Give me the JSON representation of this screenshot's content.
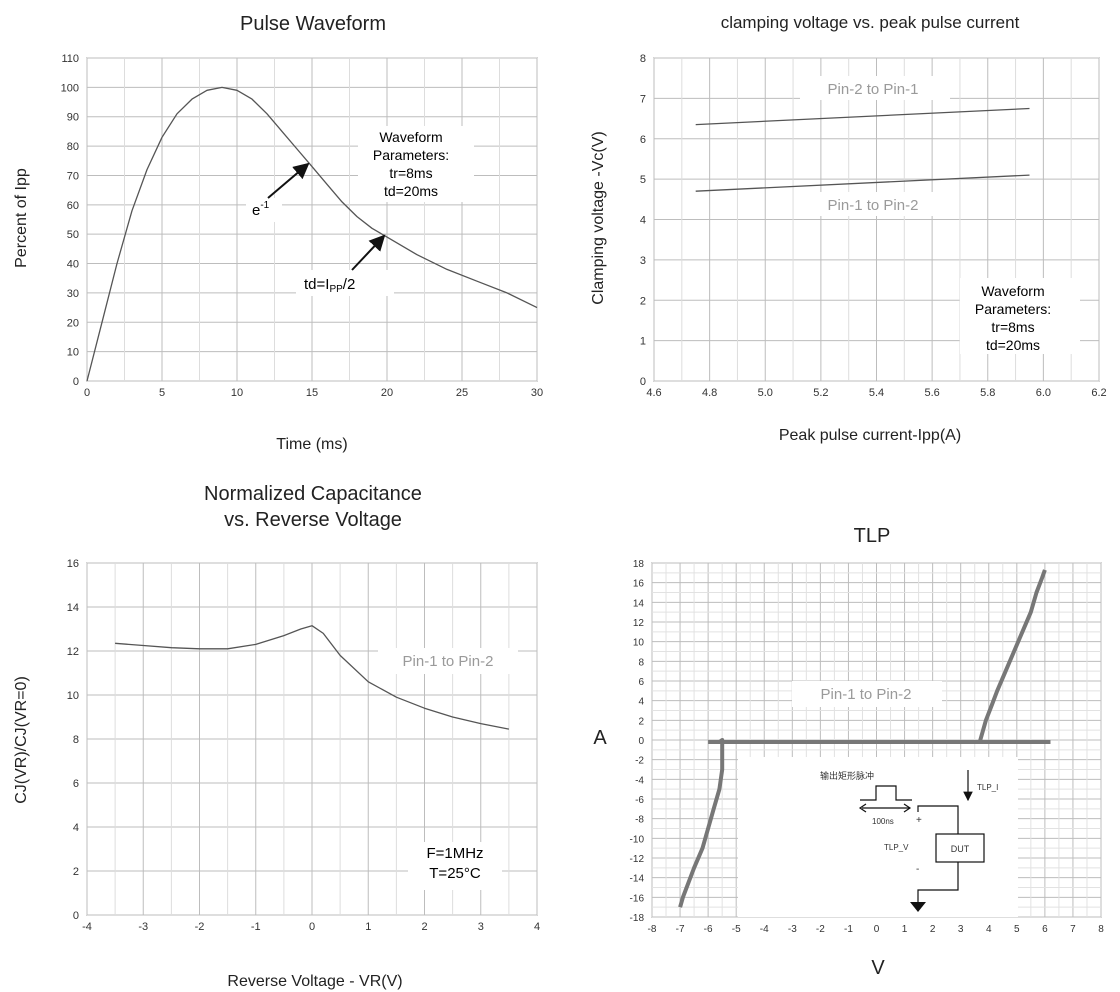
{
  "chart_data": [
    {
      "type": "line",
      "title": "Pulse Waveform",
      "xlabel": "Time (ms)",
      "ylabel": "Percent of  Ipp",
      "xlim": [
        0,
        30
      ],
      "ylim": [
        0,
        110
      ],
      "xticks": [
        0,
        5,
        10,
        15,
        20,
        25,
        30
      ],
      "yticks": [
        0,
        10,
        20,
        30,
        40,
        50,
        60,
        70,
        80,
        90,
        100,
        110
      ],
      "grid": true,
      "series": [
        {
          "x": [
            0,
            1,
            2,
            3,
            4,
            5,
            6,
            7,
            8,
            9,
            10,
            11,
            12,
            13,
            14,
            15,
            16,
            17,
            18,
            19,
            20,
            22,
            24,
            26,
            28,
            30
          ],
          "y": [
            0,
            20,
            40,
            58,
            72,
            83,
            91,
            96,
            99,
            100,
            99,
            96,
            91,
            85,
            79,
            73,
            67,
            61,
            56,
            52,
            49,
            43,
            38,
            34,
            30,
            25
          ]
        }
      ],
      "annotations": {
        "params": [
          "Waveform",
          "Parameters:",
          "tr=8ms",
          "td=20ms"
        ],
        "e_label": "e",
        "e_sup": "-1",
        "td_label": "td=I",
        "td_sub": "PP",
        "td_tail": "/2"
      }
    },
    {
      "type": "line",
      "title": "clamping voltage vs. peak pulse current",
      "xlabel": "Peak pulse current-Ipp(A)",
      "ylabel": "Clamping voltage -Vc(V)",
      "xlim": [
        4.6,
        6.2
      ],
      "ylim": [
        0,
        8
      ],
      "xticks": [
        "4.6",
        "4.8",
        "5.0",
        "5.2",
        "5.4",
        "5.6",
        "5.8",
        "6.0",
        "6.2"
      ],
      "yticks": [
        0,
        1,
        2,
        3,
        4,
        5,
        6,
        7,
        8
      ],
      "grid": true,
      "series": [
        {
          "name": "Pin-2 to Pin-1",
          "x": [
            4.75,
            5.95
          ],
          "y": [
            6.35,
            6.75
          ]
        },
        {
          "name": "Pin-1 to Pin-2",
          "x": [
            4.75,
            5.95
          ],
          "y": [
            4.7,
            5.1
          ]
        }
      ],
      "annotations": {
        "params": [
          "Waveform",
          "Parameters:",
          "tr=8ms",
          "td=20ms"
        ]
      }
    },
    {
      "type": "line",
      "title": [
        "Normalized Capacitance",
        "vs. Reverse Voltage"
      ],
      "xlabel": "Reverse Voltage - VR(V)",
      "ylabel": "CJ(VR)/CJ(VR=0)",
      "xlim": [
        -4,
        4
      ],
      "ylim": [
        0,
        16
      ],
      "xticks": [
        -4,
        -3,
        -2,
        -1,
        0,
        1,
        2,
        3,
        4
      ],
      "yticks": [
        0,
        2,
        4,
        6,
        8,
        10,
        12,
        14,
        16
      ],
      "grid": true,
      "series": [
        {
          "name": "Pin-1 to Pin-2",
          "x": [
            -3.5,
            -3,
            -2.5,
            -2,
            -1.5,
            -1,
            -0.5,
            -0.2,
            0,
            0.2,
            0.5,
            1,
            1.5,
            2,
            2.5,
            3,
            3.5
          ],
          "y": [
            12.35,
            12.25,
            12.15,
            12.1,
            12.1,
            12.3,
            12.7,
            13.0,
            13.15,
            12.8,
            11.8,
            10.6,
            9.9,
            9.4,
            9.0,
            8.7,
            8.45
          ]
        }
      ],
      "annotations": {
        "cond": [
          "F=1MHz",
          "T=25°C"
        ]
      }
    },
    {
      "type": "line",
      "title": "TLP",
      "xlabel": "V",
      "ylabel": "A",
      "xlim": [
        -8,
        8
      ],
      "ylim": [
        -18,
        18
      ],
      "xticks": [
        -8,
        -7,
        -6,
        -5,
        -4,
        -3,
        -2,
        -1,
        0,
        1,
        2,
        3,
        4,
        5,
        6,
        7,
        8
      ],
      "yticks": [
        18,
        16,
        14,
        12,
        10,
        8,
        6,
        4,
        2,
        0,
        -2,
        -4,
        -6,
        -8,
        -10,
        -12,
        -14,
        -16,
        -18
      ],
      "grid": true,
      "series": [
        {
          "name": "Pin-1 to Pin-2",
          "x": [
            -7.0,
            -6.9,
            -6.7,
            -6.5,
            -6.2,
            -6.0,
            -5.8,
            -5.6,
            -5.5,
            -5.5,
            -5.6,
            -6.0,
            -5.6,
            3.7,
            3.7,
            3.9,
            4.1,
            4.3,
            4.6,
            4.9,
            5.2,
            5.5,
            5.7,
            5.9,
            6.0
          ],
          "y": [
            -17,
            -16,
            -14.5,
            -13,
            -11,
            -9,
            -7,
            -5,
            -3,
            0,
            -0.2,
            -0.2,
            -0.2,
            -0.2,
            0,
            2,
            3.5,
            5,
            7,
            9,
            11,
            13,
            15,
            16.5,
            17.3
          ]
        }
      ],
      "inset": {
        "title": "输出矩形脉冲",
        "pulse": "100ns",
        "plus": "+",
        "minus": "-",
        "v_label": "TLP_V",
        "i_label": "TLP_I",
        "dut": "DUT"
      }
    }
  ],
  "colors": {
    "grid": "#bdbdbd",
    "axis": "#555555",
    "curve": "#555555",
    "tlp_curve": "#777777",
    "label_gray": "#9a9a9a"
  }
}
